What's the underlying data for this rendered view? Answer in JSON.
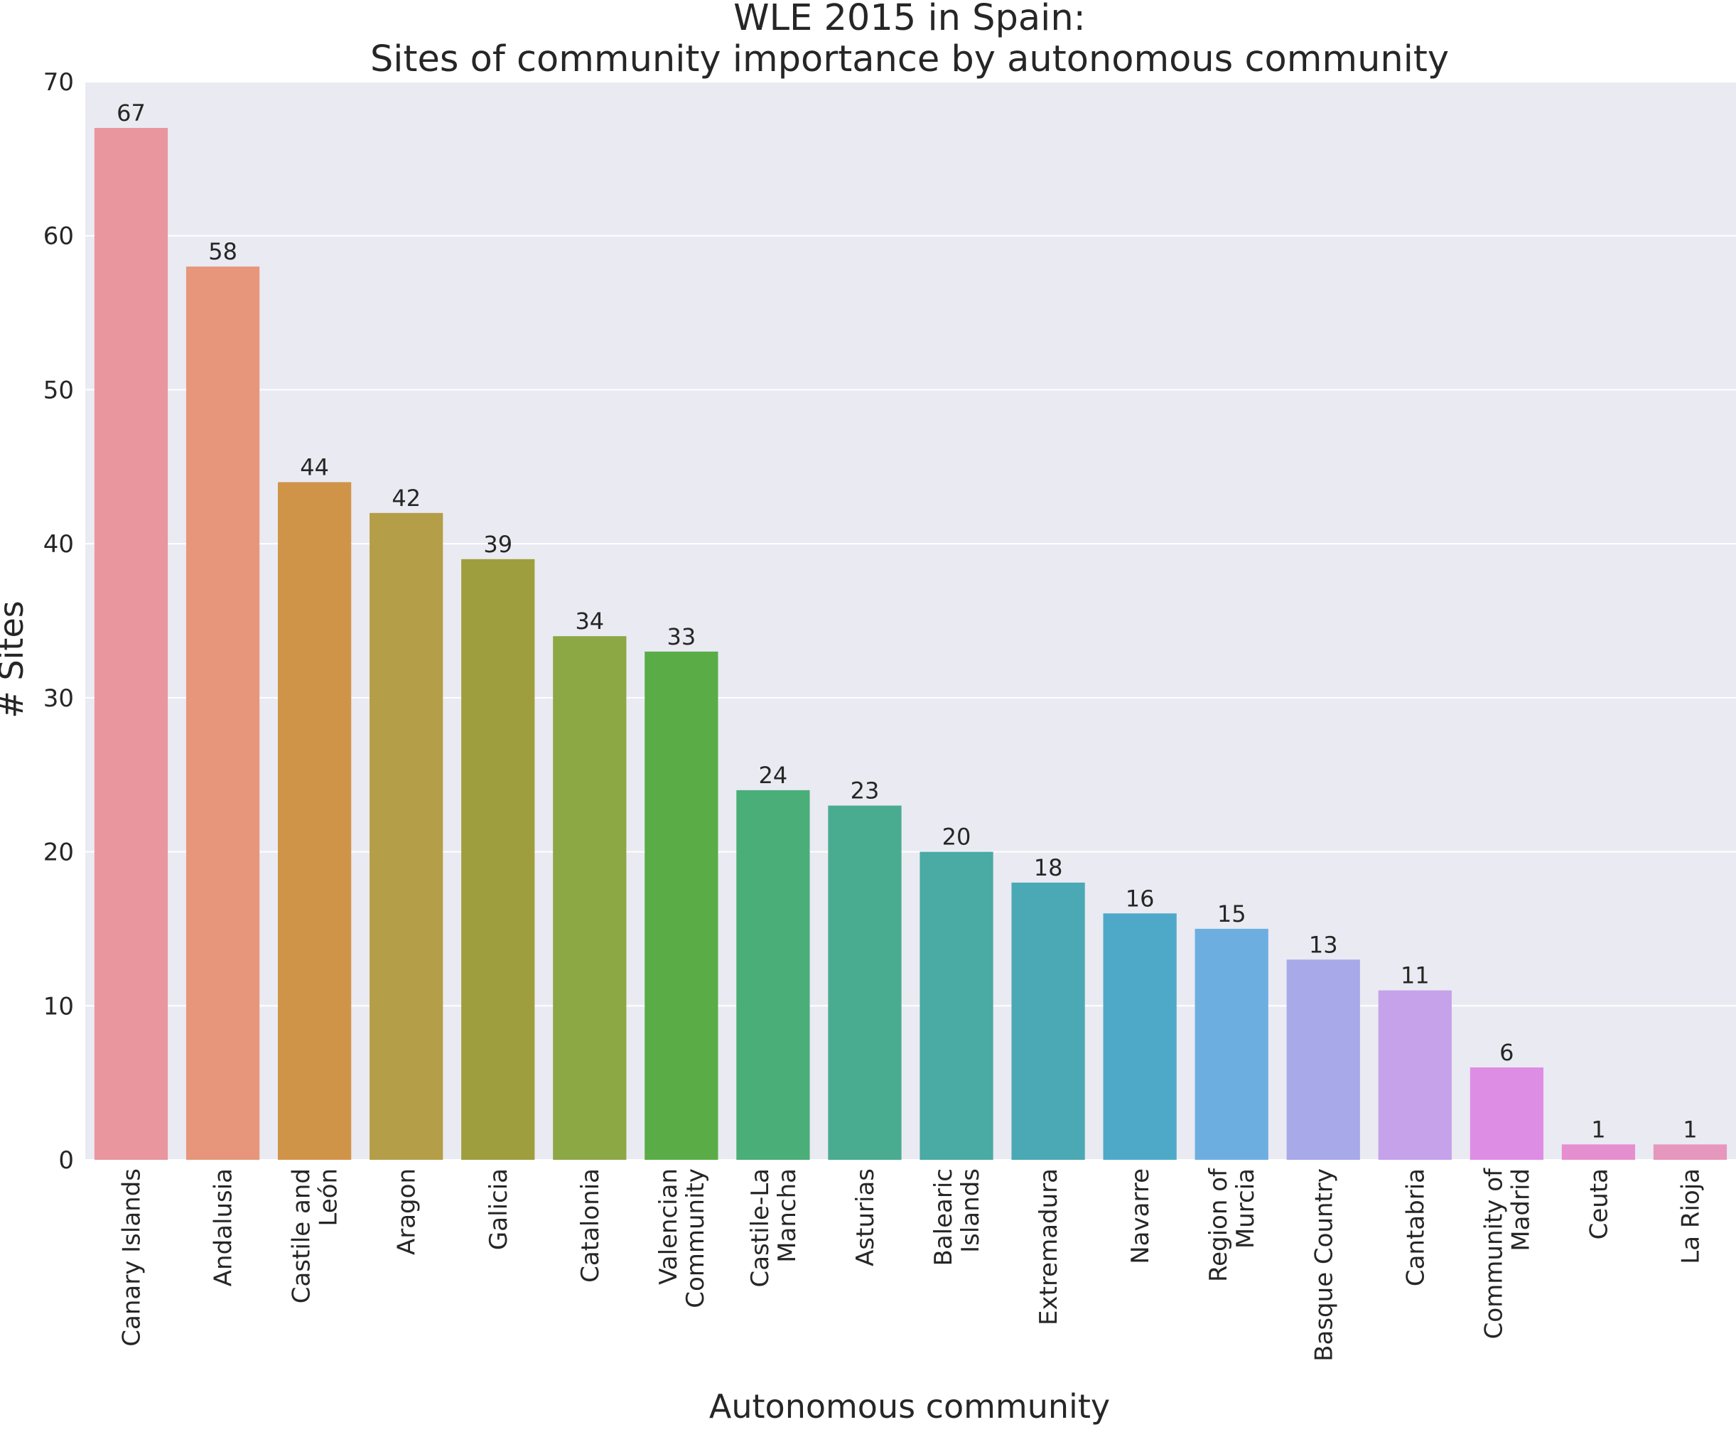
{
  "chart_data": {
    "type": "bar",
    "title_lines": [
      "WLE 2015 in Spain:",
      "Sites of community importance by autonomous community"
    ],
    "xlabel": "Autonomous community",
    "ylabel": "# Sites",
    "ylim": [
      0,
      70
    ],
    "yticks": [
      "0",
      "10",
      "20",
      "30",
      "40",
      "50",
      "60",
      "70"
    ],
    "grid": true,
    "background": "#eaeaf2",
    "categories": [
      [
        "Canary Islands"
      ],
      [
        "Andalusia"
      ],
      [
        "Castile and",
        "León"
      ],
      [
        "Aragon"
      ],
      [
        "Galicia"
      ],
      [
        "Catalonia"
      ],
      [
        "Valencian",
        "Community"
      ],
      [
        "Castile-La",
        "Mancha"
      ],
      [
        "Asturias"
      ],
      [
        "Balearic",
        "Islands"
      ],
      [
        "Extremadura"
      ],
      [
        "Navarre"
      ],
      [
        "Region of",
        "Murcia"
      ],
      [
        "Basque Country"
      ],
      [
        "Cantabria"
      ],
      [
        "Community of",
        "Madrid"
      ],
      [
        "Ceuta"
      ],
      [
        "La Rioja"
      ]
    ],
    "values": [
      67,
      58,
      44,
      42,
      39,
      34,
      33,
      24,
      23,
      20,
      18,
      16,
      15,
      13,
      11,
      6,
      1,
      1
    ],
    "colors": [
      "#e9969f",
      "#e7967b",
      "#d09449",
      "#b59e48",
      "#9f9e3f",
      "#8ca845",
      "#5aac46",
      "#49ae78",
      "#49ac91",
      "#4aaaa4",
      "#4ba9b5",
      "#4ea9c9",
      "#6daee0",
      "#a7a9e8",
      "#c5a2ea",
      "#de8de5",
      "#e68fd0",
      "#e697bd"
    ]
  }
}
